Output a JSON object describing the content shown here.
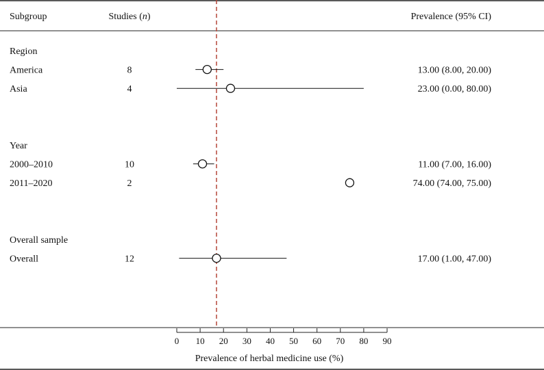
{
  "headers": {
    "subgroup": "Subgroup",
    "studies_prefix": "Studies (",
    "studies_n": "n",
    "studies_suffix": ")",
    "prevalence": "Prevalence (95% CI)"
  },
  "colors": {
    "reference_line": "#b5473a",
    "frame": "#222222",
    "marker": "#111111"
  },
  "chart_data": {
    "type": "forest",
    "xlabel": "Prevalence of herbal medicine use (%)",
    "xlim": [
      0,
      90
    ],
    "xticks": [
      0,
      10,
      20,
      30,
      40,
      50,
      60,
      70,
      80,
      90
    ],
    "reference_value": 17,
    "rows": [
      {
        "kind": "group",
        "label": "Region"
      },
      {
        "kind": "study",
        "label": "America",
        "n": "8",
        "est": 13,
        "lo": 8,
        "hi": 20,
        "text": "13.00 (8.00, 20.00)"
      },
      {
        "kind": "study",
        "label": "Asia",
        "n": "4",
        "est": 23,
        "lo": 0,
        "hi": 80,
        "text": "23.00 (0.00, 80.00)"
      },
      {
        "kind": "blank"
      },
      {
        "kind": "blank"
      },
      {
        "kind": "group",
        "label": "Year"
      },
      {
        "kind": "study",
        "label": "2000–2010",
        "n": "10",
        "est": 11,
        "lo": 7,
        "hi": 16,
        "text": "11.00 (7.00, 16.00)"
      },
      {
        "kind": "study",
        "label": "2011–2020",
        "n": "2",
        "est": 74,
        "lo": 74,
        "hi": 75,
        "text": "74.00 (74.00, 75.00)"
      },
      {
        "kind": "blank"
      },
      {
        "kind": "blank"
      },
      {
        "kind": "group",
        "label": "Overall sample"
      },
      {
        "kind": "study",
        "label": "Overall",
        "n": "12",
        "est": 17,
        "lo": 1,
        "hi": 47,
        "text": "17.00 (1.00, 47.00)"
      }
    ]
  }
}
